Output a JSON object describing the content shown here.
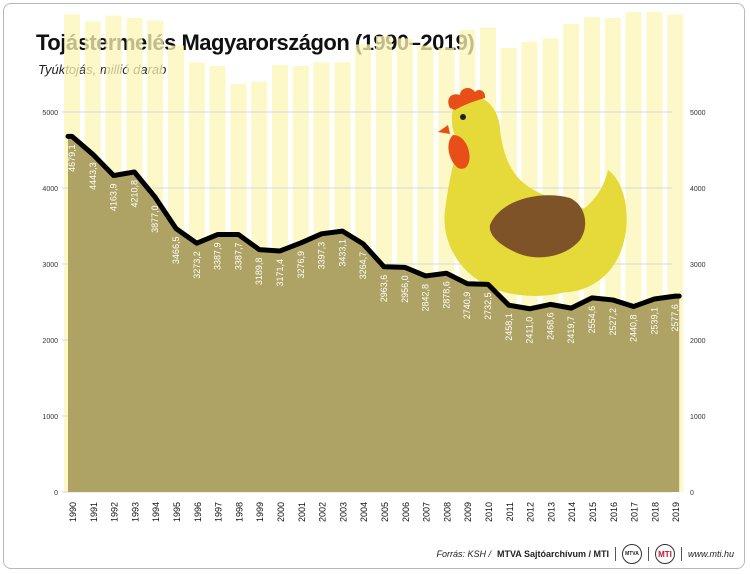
{
  "header": {
    "title": "Tojástermelés Magyarországon (1990–2019)",
    "subtitle": "Tyúktojás, millió darab"
  },
  "footer": {
    "source_label": "Forrás: KSH /",
    "source_bold": "MTVA Sajtóarchívum / MTI",
    "logo_mtva": "MTVA",
    "logo_mti": "MTI",
    "website": "www.mti.hu"
  },
  "colors": {
    "area": "#aea364",
    "line": "#000000",
    "ghost_bars": "#fbf5b4",
    "grid": "#d9d9d9",
    "hen_body": "#e6d93a",
    "hen_wing": "#7f5328",
    "hen_comb": "#e84e17"
  },
  "chart_data": {
    "type": "area",
    "title": "Tojástermelés Magyarországon (1990–2019)",
    "ylabel": "Tyúktojás, millió darab",
    "ylim": [
      0,
      5000
    ],
    "yticks": [
      0,
      1000,
      2000,
      3000,
      4000,
      5000
    ],
    "grid": true,
    "categories": [
      "1990",
      "1991",
      "1992",
      "1993",
      "1994",
      "1995",
      "1996",
      "1997",
      "1998",
      "1999",
      "2000",
      "2001",
      "2002",
      "2003",
      "2004",
      "2005",
      "2006",
      "2007",
      "2008",
      "2009",
      "2010",
      "2011",
      "2012",
      "2013",
      "2014",
      "2015",
      "2016",
      "2017",
      "2018",
      "2019"
    ],
    "values": [
      4679.1,
      4443.3,
      4163.9,
      4210.8,
      3877.0,
      3466.5,
      3273.2,
      3387.9,
      3387.7,
      3189.8,
      3171.4,
      3276.9,
      3397.3,
      3433.1,
      3264.7,
      2963.6,
      2956.0,
      2842.8,
      2878.6,
      2740.9,
      2732.5,
      2458.1,
      2411.0,
      2468.6,
      2419.7,
      2554.6,
      2527.2,
      2440.8,
      2539.1,
      2577.6
    ],
    "value_labels": [
      "4679,1",
      "4443,3",
      "4163,9",
      "4210,8",
      "3877,0",
      "3466,5",
      "3273,2",
      "3387,9",
      "3387,7",
      "3189,8",
      "3171,4",
      "3276,9",
      "3397,3",
      "3433,1",
      "3264,7",
      "2963,6",
      "2956,0",
      "2842,8",
      "2878,6",
      "2740,9",
      "2732,5",
      "2458,1",
      "2411,0",
      "2468,6",
      "2419,7",
      "2554,6",
      "2527,2",
      "2440,8",
      "2539,1",
      "2577,6"
    ]
  }
}
